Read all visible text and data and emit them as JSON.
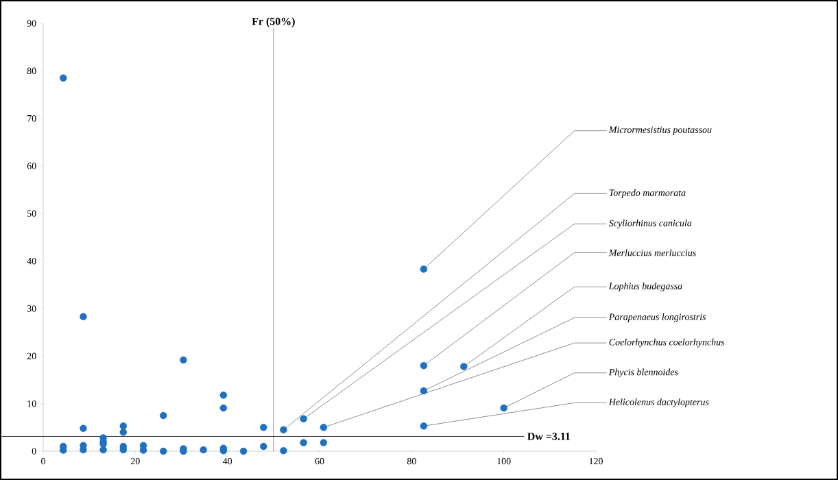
{
  "chart_data": {
    "type": "scatter",
    "xlim": [
      0,
      120
    ],
    "ylim": [
      0,
      90
    ],
    "xticks": [
      0,
      20,
      40,
      60,
      80,
      100,
      120
    ],
    "yticks": [
      0,
      10,
      20,
      30,
      40,
      50,
      60,
      70,
      80,
      90
    ],
    "grid": false,
    "marker": "circle",
    "color": "#1f70c1",
    "x": [
      4.35,
      4.35,
      4.35,
      8.7,
      8.7,
      8.7,
      8.7,
      13.04,
      13.04,
      13.04,
      13.04,
      17.39,
      17.39,
      17.39,
      17.39,
      21.74,
      21.74,
      26.09,
      26.09,
      30.43,
      30.43,
      30.43,
      34.78,
      39.13,
      39.13,
      39.13,
      39.13,
      43.48,
      47.83,
      47.83,
      52.17,
      52.17,
      56.52,
      56.52,
      60.87,
      60.87,
      82.61,
      82.61,
      82.61,
      82.61,
      91.3,
      100
    ],
    "values": [
      78.5,
      1.0,
      0.2,
      28.3,
      4.8,
      1.2,
      0.3,
      2.8,
      2.0,
      1.5,
      0.3,
      5.3,
      4.0,
      1.0,
      0.3,
      1.2,
      0.2,
      7.5,
      0.0,
      19.2,
      0.5,
      0.0,
      0.3,
      11.8,
      9.1,
      0.6,
      0.1,
      0.0,
      5.0,
      1.0,
      4.5,
      0.1,
      6.8,
      1.8,
      5.0,
      1.8,
      38.3,
      18.0,
      12.7,
      5.3,
      17.8,
      9.1
    ],
    "ref_lines": [
      {
        "axis": "x",
        "value": 50,
        "label": "Fr (50%)",
        "color": "#c0504d"
      },
      {
        "axis": "y",
        "value": 3.11,
        "label": "Dw =3.11",
        "color": "#000000"
      }
    ],
    "annotations": [
      {
        "text": "Micrormesistius  poutassou",
        "x": 82.61,
        "y": 38.3
      },
      {
        "text": "Torpedo marmorata",
        "x": 52.17,
        "y": 4.5
      },
      {
        "text": "Scyliorhinus  canicula",
        "x": 56.52,
        "y": 6.8
      },
      {
        "text": "Merluccius  merluccius",
        "x": 82.61,
        "y": 18.0
      },
      {
        "text": "Lophius budegassa",
        "x": 91.3,
        "y": 17.8
      },
      {
        "text": "Parapenaeus longirostris",
        "x": 82.61,
        "y": 12.7
      },
      {
        "text": "Coelorhynchus coelorhynchus",
        "x": 60.87,
        "y": 5.0
      },
      {
        "text": "Phycis blennoides",
        "x": 100,
        "y": 9.1
      },
      {
        "text": "Helicolenus dactylopterus",
        "x": 82.61,
        "y": 5.3
      }
    ]
  }
}
